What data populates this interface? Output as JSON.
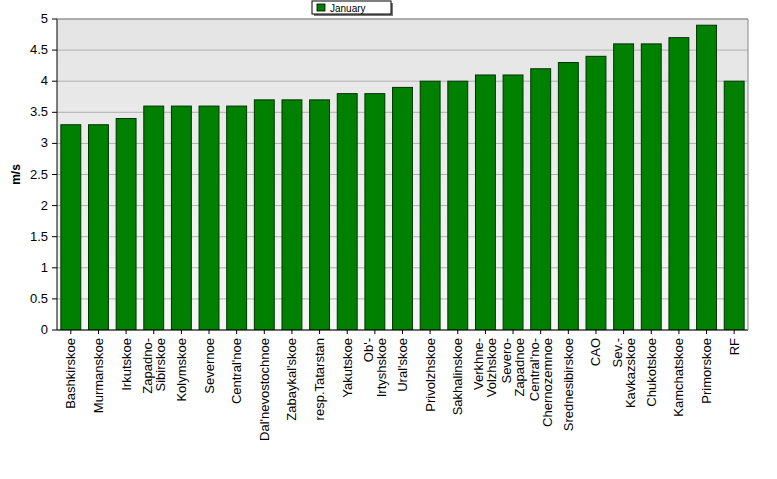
{
  "chart_data": {
    "type": "bar",
    "y_label": "m/s",
    "categories": [
      "Bashkirskoe",
      "Murmanskoe",
      "Irkutskoe",
      "Zapadno-Sibirskoe",
      "Kolymskoe",
      "Severnoe",
      "Central'noe",
      "Dal'nevostochnoe",
      "Zabaykal'skoe",
      "resp.Tatarstan",
      "Yakutskoe",
      "Ob'-Irtyshskoe",
      "Ural'skoe",
      "Privolzhskoe",
      "Sakhalinskoe",
      "Verkhne-Volzhskoe",
      "Severo-Zapadnoe",
      "Central'no-Chernozemnoe",
      "Srednesibirskoe",
      "CAO",
      "Sev.-Kavkazskoe",
      "Chukotskoe",
      "Kamchatskoe",
      "Primorskoe",
      "RF"
    ],
    "series": [
      {
        "name": "January",
        "color": "#008000",
        "values": [
          3.3,
          3.3,
          3.4,
          3.6,
          3.6,
          3.6,
          3.6,
          3.7,
          3.7,
          3.7,
          3.8,
          3.8,
          3.9,
          4.0,
          4.0,
          4.1,
          4.1,
          4.2,
          4.3,
          4.4,
          4.6,
          4.6,
          4.7,
          4.9,
          4.0
        ]
      }
    ],
    "ylim": [
      0,
      5
    ],
    "yticks": [
      0,
      0.5,
      1,
      1.5,
      2,
      2.5,
      3,
      3.5,
      4,
      4.5,
      5
    ],
    "grid": true,
    "legend": "top"
  }
}
